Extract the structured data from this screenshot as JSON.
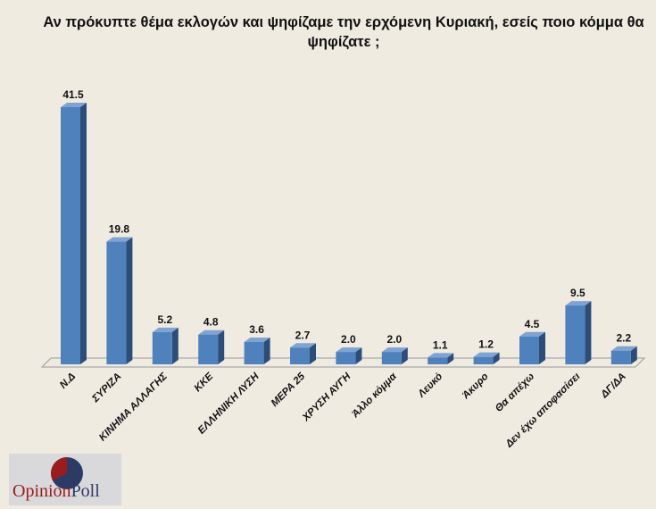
{
  "chart_data": {
    "type": "bar",
    "title": "Αν πρόκυπτε θέμα εκλογών και ψηφίζαμε την ερχόμενη Κυριακή, εσείς ποιο κόμμα θα ψηφίζατε ;",
    "categories": [
      "Ν.Δ",
      "ΣΥΡΙΖΑ",
      "ΚΙΝΗΜΑ ΑΛΛΑΓΗΣ",
      "ΚΚΕ",
      "ΕΛΛΗΝΙΚΗ ΛΥΣΗ",
      "ΜΕΡΑ 25",
      "ΧΡΥΣΗ ΑΥΓΗ",
      "Άλλο κόμμα",
      "Λευκό",
      "Άκυρο",
      "Θα απέχω",
      "Δεν έχω αποφασίσει",
      "ΔΓ/ΔΑ"
    ],
    "values": [
      41.5,
      19.8,
      5.2,
      4.8,
      3.6,
      2.7,
      2.0,
      2.0,
      1.1,
      1.2,
      4.5,
      9.5,
      2.2
    ],
    "value_labels": [
      "41.5",
      "19.8",
      "5.2",
      "4.8",
      "3.6",
      "2.7",
      "2.0",
      "2.0",
      "1.1",
      "1.2",
      "4.5",
      "9.5",
      "2.2"
    ],
    "xlabel": "",
    "ylabel": "",
    "ylim": [
      0,
      42
    ],
    "grid": false,
    "legend": "none",
    "colors": {
      "front": "#4f81bd",
      "side": "#2c4d77",
      "top": "#7fa3d3"
    }
  },
  "logo": {
    "text_part1": "Opinion",
    "text_part2": "Poll"
  }
}
